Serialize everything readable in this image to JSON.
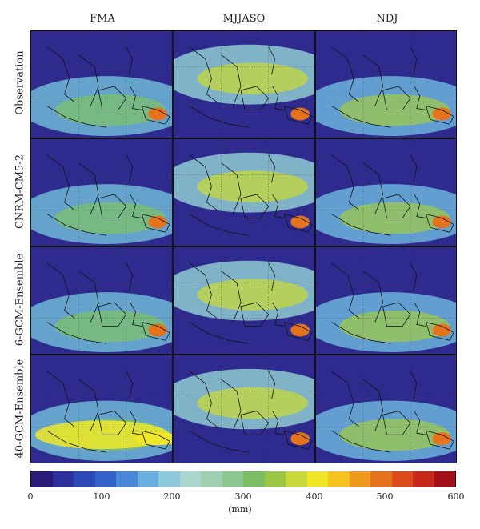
{
  "columns": [
    "FMA",
    "MJJASO",
    "NDJ"
  ],
  "rows": [
    "Observation",
    "CNRM-CM5-2",
    "6-GCM-Ensemble",
    "40-GCM-Ensemble"
  ],
  "colorbar": {
    "min": 0,
    "max": 600,
    "ticks": [
      "0",
      "100",
      "200",
      "300",
      "400",
      "500",
      "600"
    ],
    "unit": "(mm)",
    "colors": [
      "#2a1b7a",
      "#2d2f9a",
      "#2c47b8",
      "#3462cc",
      "#4a86d8",
      "#68aee0",
      "#8ec9dd",
      "#a9d6cf",
      "#9fcfb2",
      "#8cc690",
      "#7cbd63",
      "#9ac844",
      "#c8d93a",
      "#f0e628",
      "#f5c21f",
      "#ee9a1d",
      "#e6731c",
      "#dc4b1a",
      "#c92719",
      "#a4101a"
    ]
  },
  "panels": [
    [
      {
        "name": "obs-fma"
      },
      {
        "name": "obs-mjjaso"
      },
      {
        "name": "obs-ndj"
      }
    ],
    [
      {
        "name": "cnrm-fma"
      },
      {
        "name": "cnrm-mjjaso"
      },
      {
        "name": "cnrm-ndj"
      }
    ],
    [
      {
        "name": "ens6-fma"
      },
      {
        "name": "ens6-mjjaso"
      },
      {
        "name": "ens6-ndj"
      }
    ],
    [
      {
        "name": "ens40-fma"
      },
      {
        "name": "ens40-mjjaso"
      },
      {
        "name": "ens40-ndj"
      }
    ]
  ]
}
